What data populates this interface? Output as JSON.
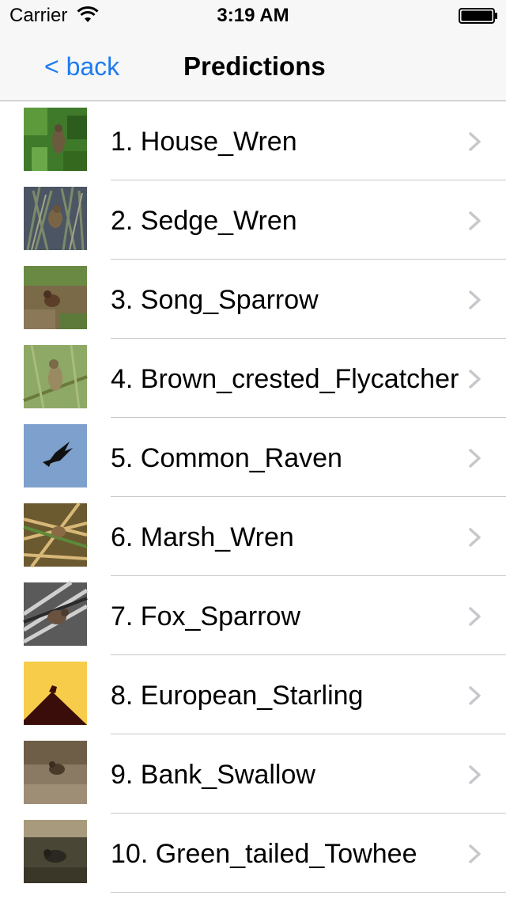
{
  "status_bar": {
    "carrier": "Carrier",
    "time": "3:19 AM",
    "wifi_icon": "wifi-icon",
    "battery_icon": "battery-icon"
  },
  "nav": {
    "back_label": "< back",
    "title": "Predictions",
    "accent_color": "#1d7bf0"
  },
  "predictions": [
    {
      "label": "1. House_Wren",
      "icon": "bird-thumbnail"
    },
    {
      "label": "2. Sedge_Wren",
      "icon": "bird-thumbnail"
    },
    {
      "label": "3. Song_Sparrow",
      "icon": "bird-thumbnail"
    },
    {
      "label": "4. Brown_crested_Flycatcher",
      "icon": "bird-thumbnail"
    },
    {
      "label": "5. Common_Raven",
      "icon": "bird-thumbnail"
    },
    {
      "label": "6. Marsh_Wren",
      "icon": "bird-thumbnail"
    },
    {
      "label": "7. Fox_Sparrow",
      "icon": "bird-thumbnail"
    },
    {
      "label": "8. European_Starling",
      "icon": "bird-thumbnail"
    },
    {
      "label": "9. Bank_Swallow",
      "icon": "bird-thumbnail"
    },
    {
      "label": "10. Green_tailed_Towhee",
      "icon": "bird-thumbnail"
    }
  ]
}
